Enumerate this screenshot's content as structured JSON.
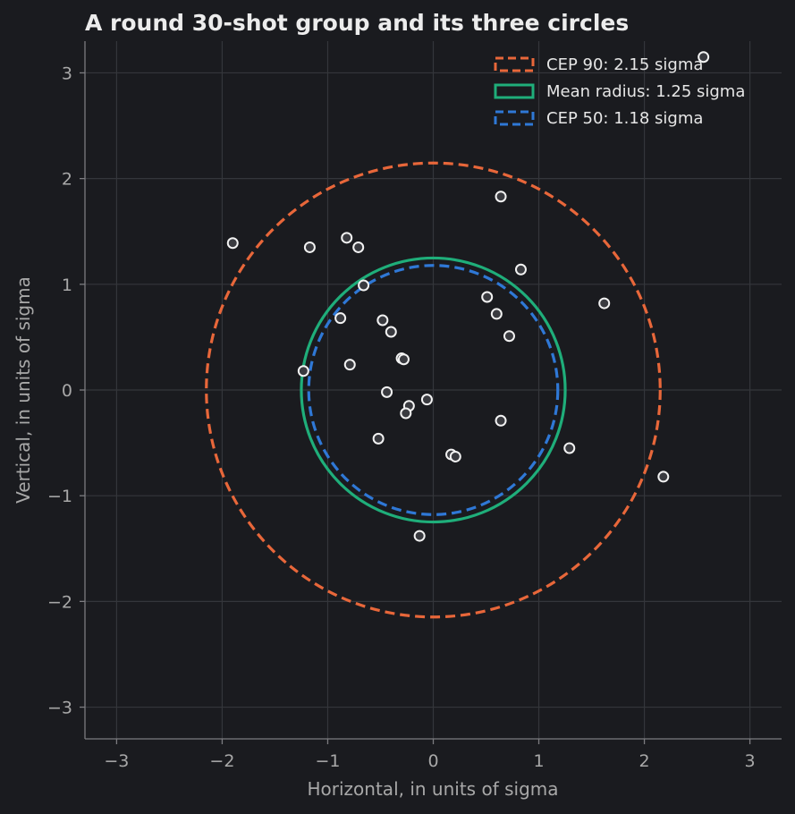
{
  "chart_data": {
    "type": "scatter",
    "title": "A round 30-shot group and its three circles",
    "xlabel": "Horizontal, in units of sigma",
    "ylabel": "Vertical, in units of sigma",
    "xlim": [
      -3.3,
      3.3
    ],
    "ylim": [
      -3.3,
      3.3
    ],
    "x_ticks": [
      -3,
      -2,
      -1,
      0,
      1,
      2,
      3
    ],
    "y_ticks": [
      -3,
      -2,
      -1,
      0,
      1,
      2,
      3
    ],
    "x_tick_labels": [
      "−3",
      "−2",
      "−1",
      "0",
      "1",
      "2",
      "3"
    ],
    "y_tick_labels": [
      "−3",
      "−2",
      "−1",
      "0",
      "1",
      "2",
      "3"
    ],
    "grid": true,
    "legend_position": "top-right",
    "circles": [
      {
        "label": "CEP 90: 2.15 sigma",
        "radius": 2.15,
        "color": "#e8673a",
        "style": "dashed"
      },
      {
        "label": "Mean radius: 1.25 sigma",
        "radius": 1.25,
        "color": "#1fae7a",
        "style": "solid"
      },
      {
        "label": "CEP 50: 1.18 sigma",
        "radius": 1.18,
        "color": "#2f78d6",
        "style": "dashed"
      }
    ],
    "points": [
      {
        "x": 2.56,
        "y": 3.15
      },
      {
        "x": 0.64,
        "y": 1.83
      },
      {
        "x": -1.9,
        "y": 1.39
      },
      {
        "x": -1.17,
        "y": 1.35
      },
      {
        "x": -0.82,
        "y": 1.44
      },
      {
        "x": -0.71,
        "y": 1.35
      },
      {
        "x": 0.83,
        "y": 1.14
      },
      {
        "x": -0.66,
        "y": 0.99
      },
      {
        "x": 0.51,
        "y": 0.88
      },
      {
        "x": 1.62,
        "y": 0.82
      },
      {
        "x": 0.6,
        "y": 0.72
      },
      {
        "x": -0.88,
        "y": 0.68
      },
      {
        "x": -0.48,
        "y": 0.66
      },
      {
        "x": -0.4,
        "y": 0.55
      },
      {
        "x": 0.72,
        "y": 0.51
      },
      {
        "x": -0.3,
        "y": 0.3
      },
      {
        "x": -0.28,
        "y": 0.29
      },
      {
        "x": -0.79,
        "y": 0.24
      },
      {
        "x": -1.23,
        "y": 0.18
      },
      {
        "x": -0.44,
        "y": -0.02
      },
      {
        "x": -0.06,
        "y": -0.09
      },
      {
        "x": -0.23,
        "y": -0.15
      },
      {
        "x": -0.26,
        "y": -0.22
      },
      {
        "x": 0.64,
        "y": -0.29
      },
      {
        "x": -0.52,
        "y": -0.46
      },
      {
        "x": 1.29,
        "y": -0.55
      },
      {
        "x": 0.17,
        "y": -0.61
      },
      {
        "x": 0.21,
        "y": -0.63
      },
      {
        "x": 2.18,
        "y": -0.82
      },
      {
        "x": -0.13,
        "y": -1.38
      }
    ],
    "point_color": "#f2f2f2",
    "point_fill": "#3a3b40"
  }
}
